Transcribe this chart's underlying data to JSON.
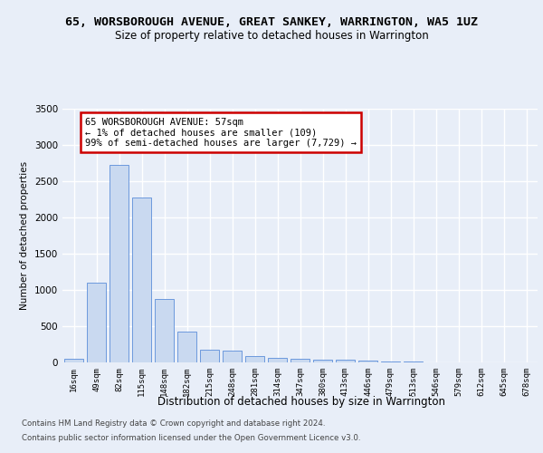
{
  "title_line1": "65, WORSBOROUGH AVENUE, GREAT SANKEY, WARRINGTON, WA5 1UZ",
  "title_line2": "Size of property relative to detached houses in Warrington",
  "xlabel": "Distribution of detached houses by size in Warrington",
  "ylabel": "Number of detached properties",
  "bar_color": "#c9d9f0",
  "bar_edge_color": "#5b8dd9",
  "categories": [
    "16sqm",
    "49sqm",
    "82sqm",
    "115sqm",
    "148sqm",
    "182sqm",
    "215sqm",
    "248sqm",
    "281sqm",
    "314sqm",
    "347sqm",
    "380sqm",
    "413sqm",
    "446sqm",
    "479sqm",
    "513sqm",
    "546sqm",
    "579sqm",
    "612sqm",
    "645sqm",
    "678sqm"
  ],
  "values": [
    55,
    1100,
    2730,
    2280,
    880,
    430,
    170,
    160,
    90,
    60,
    55,
    40,
    35,
    30,
    10,
    10,
    0,
    0,
    0,
    0,
    0
  ],
  "ylim": [
    0,
    3500
  ],
  "yticks": [
    0,
    500,
    1000,
    1500,
    2000,
    2500,
    3000,
    3500
  ],
  "annotation_text": "65 WORSBOROUGH AVENUE: 57sqm\n← 1% of detached houses are smaller (109)\n99% of semi-detached houses are larger (7,729) →",
  "annotation_box_color": "#ffffff",
  "annotation_box_edge": "#cc0000",
  "footer_line1": "Contains HM Land Registry data © Crown copyright and database right 2024.",
  "footer_line2": "Contains public sector information licensed under the Open Government Licence v3.0.",
  "bg_color": "#e8eef8",
  "plot_bg_color": "#e8eef8",
  "grid_color": "#ffffff",
  "title_fontsize": 9.5,
  "subtitle_fontsize": 8.5
}
